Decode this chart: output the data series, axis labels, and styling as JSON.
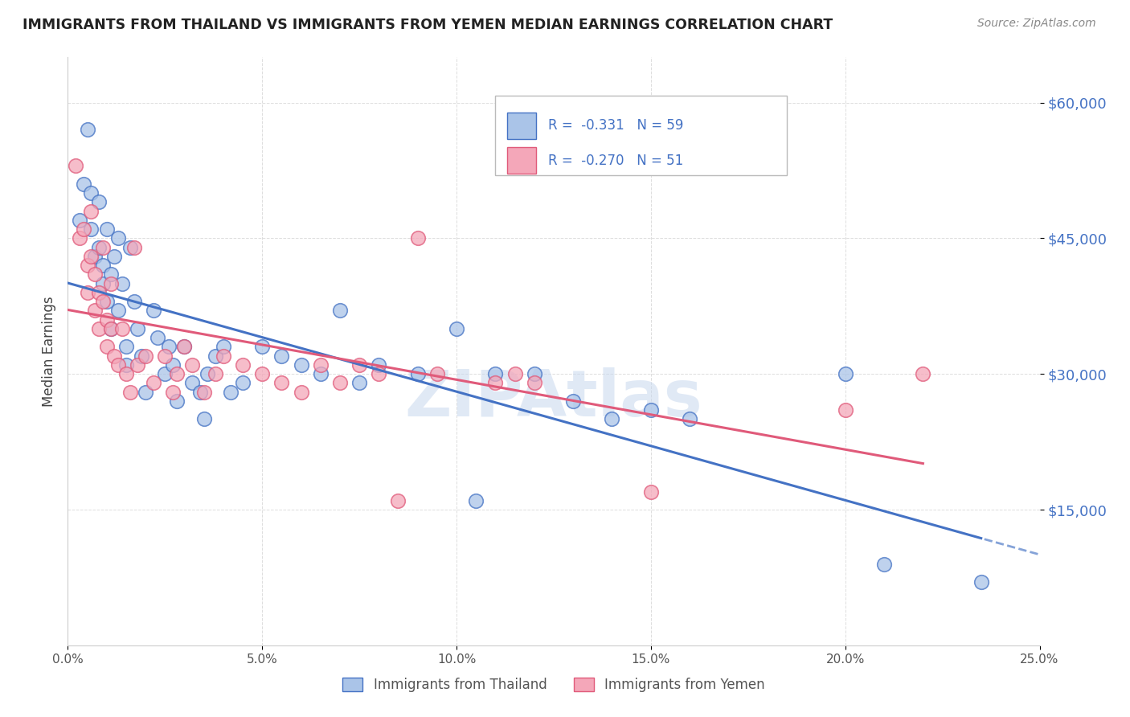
{
  "title": "IMMIGRANTS FROM THAILAND VS IMMIGRANTS FROM YEMEN MEDIAN EARNINGS CORRELATION CHART",
  "source": "Source: ZipAtlas.com",
  "ylabel": "Median Earnings",
  "ytick_labels": [
    "$15,000",
    "$30,000",
    "$45,000",
    "$60,000"
  ],
  "ytick_values": [
    15000,
    30000,
    45000,
    60000
  ],
  "xmin": 0.0,
  "xmax": 25.0,
  "ymin": 0,
  "ymax": 65000,
  "legend_label1": "Immigrants from Thailand",
  "legend_label2": "Immigrants from Yemen",
  "color_thailand": "#aac4e8",
  "color_yemen": "#f4a7b9",
  "color_thailand_line": "#4472c4",
  "color_yemen_line": "#e05a7a",
  "color_legend_text": "#4472c4",
  "watermark_text": "ZIPAtlas",
  "watermark_color": "#c8d8ee",
  "thailand_x": [
    0.3,
    0.4,
    0.5,
    0.6,
    0.6,
    0.7,
    0.8,
    0.8,
    0.9,
    0.9,
    1.0,
    1.0,
    1.1,
    1.1,
    1.2,
    1.3,
    1.3,
    1.4,
    1.5,
    1.5,
    1.6,
    1.7,
    1.8,
    1.9,
    2.0,
    2.2,
    2.3,
    2.5,
    2.6,
    2.7,
    2.8,
    3.0,
    3.2,
    3.4,
    3.5,
    3.6,
    3.8,
    4.0,
    4.2,
    4.5,
    5.0,
    5.5,
    6.0,
    6.5,
    7.0,
    7.5,
    8.0,
    9.0,
    10.0,
    10.5,
    11.0,
    12.0,
    13.0,
    14.0,
    15.0,
    16.0,
    20.0,
    21.0,
    23.5
  ],
  "thailand_y": [
    47000,
    51000,
    57000,
    50000,
    46000,
    43000,
    49000,
    44000,
    42000,
    40000,
    46000,
    38000,
    41000,
    35000,
    43000,
    45000,
    37000,
    40000,
    33000,
    31000,
    44000,
    38000,
    35000,
    32000,
    28000,
    37000,
    34000,
    30000,
    33000,
    31000,
    27000,
    33000,
    29000,
    28000,
    25000,
    30000,
    32000,
    33000,
    28000,
    29000,
    33000,
    32000,
    31000,
    30000,
    37000,
    29000,
    31000,
    30000,
    35000,
    16000,
    30000,
    30000,
    27000,
    25000,
    26000,
    25000,
    30000,
    9000,
    7000
  ],
  "yemen_x": [
    0.2,
    0.3,
    0.4,
    0.5,
    0.5,
    0.6,
    0.6,
    0.7,
    0.7,
    0.8,
    0.8,
    0.9,
    0.9,
    1.0,
    1.0,
    1.1,
    1.1,
    1.2,
    1.3,
    1.4,
    1.5,
    1.6,
    1.7,
    1.8,
    2.0,
    2.2,
    2.5,
    2.7,
    2.8,
    3.0,
    3.2,
    3.5,
    3.8,
    4.0,
    4.5,
    5.0,
    5.5,
    6.0,
    6.5,
    7.0,
    7.5,
    8.0,
    8.5,
    9.0,
    9.5,
    11.0,
    11.5,
    12.0,
    15.0,
    20.0,
    22.0
  ],
  "yemen_y": [
    53000,
    45000,
    46000,
    42000,
    39000,
    48000,
    43000,
    41000,
    37000,
    39000,
    35000,
    44000,
    38000,
    36000,
    33000,
    40000,
    35000,
    32000,
    31000,
    35000,
    30000,
    28000,
    44000,
    31000,
    32000,
    29000,
    32000,
    28000,
    30000,
    33000,
    31000,
    28000,
    30000,
    32000,
    31000,
    30000,
    29000,
    28000,
    31000,
    29000,
    31000,
    30000,
    16000,
    45000,
    30000,
    29000,
    30000,
    29000,
    17000,
    26000,
    30000
  ]
}
